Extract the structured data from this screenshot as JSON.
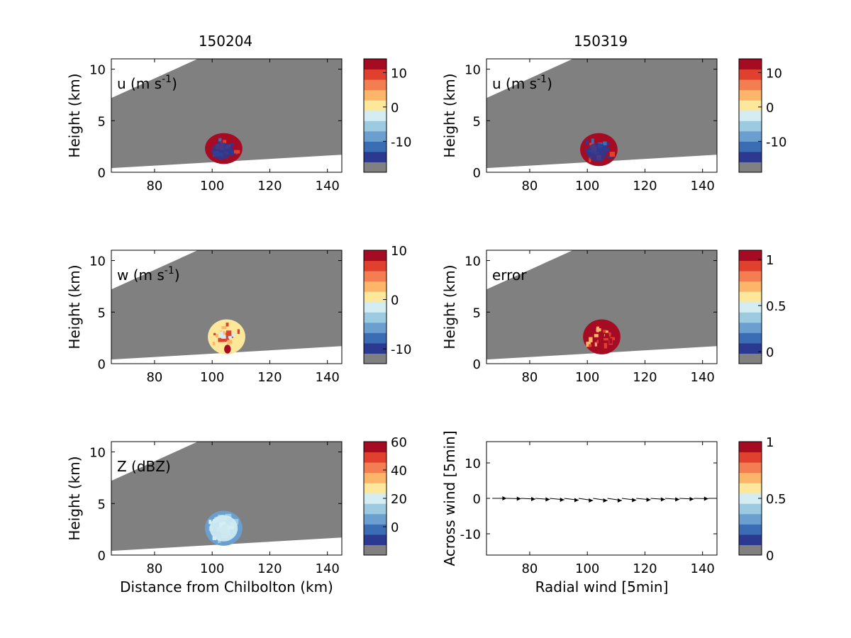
{
  "figure": {
    "column_titles": [
      "150204",
      "150319"
    ]
  },
  "colors": {
    "background_gray": "#808080",
    "palette": [
      "#808080",
      "#2b3990",
      "#3a6db4",
      "#6b9fcf",
      "#9ccae1",
      "#d4edf3",
      "#fde79a",
      "#fdb56a",
      "#f37e52",
      "#e0412f",
      "#a50c24"
    ]
  },
  "chart_data": [
    {
      "id": "p1",
      "type": "heatmap",
      "column": 0,
      "row": 0,
      "label": "u (m s",
      "label_sup": "-1",
      "label_suffix": ")",
      "ylabel": "Height (km)",
      "xlabel": "",
      "xlim": [
        65,
        145
      ],
      "ylim": [
        0,
        11
      ],
      "xticks": [
        "80",
        "100",
        "120",
        "140"
      ],
      "yticks": [
        "0",
        "5",
        "10"
      ],
      "colorbar": {
        "range": [
          -19,
          14
        ],
        "ticks": [
          "10",
          "0",
          "-10"
        ],
        "tick_values": [
          10,
          0,
          -10
        ]
      },
      "echo": {
        "center": [
          104,
          2.3
        ],
        "width": 13,
        "height": 3.0,
        "style": "u"
      }
    },
    {
      "id": "p2",
      "type": "heatmap",
      "column": 1,
      "row": 0,
      "label": "u (m s",
      "label_sup": "-1",
      "label_suffix": ")",
      "ylabel": "Height (km)",
      "xlabel": "",
      "xlim": [
        65,
        145
      ],
      "ylim": [
        0,
        11
      ],
      "xticks": [
        "80",
        "100",
        "120",
        "140"
      ],
      "yticks": [
        "0",
        "5",
        "10"
      ],
      "colorbar": {
        "range": [
          -19,
          14
        ],
        "ticks": [
          "10",
          "0",
          "-10"
        ],
        "tick_values": [
          10,
          0,
          -10
        ]
      },
      "echo": {
        "center": [
          104,
          2.2
        ],
        "width": 13,
        "height": 3.2,
        "style": "u"
      }
    },
    {
      "id": "p3",
      "type": "heatmap",
      "column": 0,
      "row": 1,
      "label": "w (m s",
      "label_sup": "-1",
      "label_suffix": ")",
      "ylabel": "Height (km)",
      "xlabel": "",
      "xlim": [
        65,
        145
      ],
      "ylim": [
        0,
        11
      ],
      "xticks": [
        "80",
        "100",
        "120",
        "140"
      ],
      "yticks": [
        "0",
        "5",
        "10"
      ],
      "colorbar": {
        "range": [
          -13,
          10
        ],
        "ticks": [
          "10",
          "0",
          "-10"
        ],
        "tick_values": [
          10,
          0,
          -10
        ]
      },
      "echo": {
        "center": [
          105,
          2.6
        ],
        "width": 13,
        "height": 3.4,
        "style": "w"
      }
    },
    {
      "id": "p4",
      "type": "heatmap",
      "column": 1,
      "row": 1,
      "label": "error",
      "label_sup": "",
      "label_suffix": "",
      "ylabel": "Height (km)",
      "xlabel": "",
      "xlim": [
        65,
        145
      ],
      "ylim": [
        0,
        11
      ],
      "xticks": [
        "80",
        "100",
        "120",
        "140"
      ],
      "yticks": [
        "0",
        "5",
        "10"
      ],
      "colorbar": {
        "range": [
          -0.13,
          1.1
        ],
        "ticks": [
          "1",
          "0.5",
          "0"
        ],
        "tick_values": [
          1,
          0.5,
          0
        ]
      },
      "echo": {
        "center": [
          105,
          2.6
        ],
        "width": 13,
        "height": 3.4,
        "style": "error"
      }
    },
    {
      "id": "p5",
      "type": "heatmap",
      "column": 0,
      "row": 2,
      "label": "Z (dBZ)",
      "label_sup": "",
      "label_suffix": "",
      "ylabel": "Height (km)",
      "xlabel": "Distance from Chilbolton (km)",
      "xlim": [
        65,
        145
      ],
      "ylim": [
        0,
        11
      ],
      "xticks": [
        "80",
        "100",
        "120",
        "140"
      ],
      "yticks": [
        "0",
        "5",
        "10"
      ],
      "colorbar": {
        "range": [
          -20,
          60
        ],
        "ticks": [
          "60",
          "40",
          "20",
          "0"
        ],
        "tick_values": [
          60,
          40,
          20,
          0
        ]
      },
      "echo": {
        "center": [
          104,
          2.6
        ],
        "width": 13,
        "height": 3.4,
        "style": "Z"
      }
    },
    {
      "id": "p6",
      "type": "scatter",
      "column": 1,
      "row": 2,
      "label": "",
      "label_sup": "",
      "label_suffix": "",
      "ylabel": "Across wind [5min]",
      "xlabel": "Radial wind [5min]",
      "xlim": [
        65,
        145
      ],
      "ylim": [
        -16,
        16
      ],
      "xticks": [
        "80",
        "100",
        "120",
        "140"
      ],
      "yticks": [
        "-10",
        "0",
        "10"
      ],
      "colorbar": {
        "range": [
          0,
          1
        ],
        "ticks": [
          "1",
          "0.5",
          "0"
        ],
        "tick_values": [
          1,
          0.5,
          0
        ]
      },
      "vectors": {
        "x": [
          70,
          75,
          80,
          85,
          90,
          95,
          100,
          105,
          110,
          115,
          120,
          125,
          130,
          135,
          140,
          145
        ],
        "y": [
          0,
          0,
          0,
          0,
          0,
          0,
          0,
          0,
          0,
          0,
          0,
          0,
          0,
          0,
          0,
          0
        ],
        "dy": [
          0,
          -0.1,
          -0.2,
          -0.3,
          -0.4,
          -0.5,
          -0.6,
          -0.6,
          -0.6,
          -0.5,
          -0.4,
          -0.3,
          -0.3,
          -0.2,
          -0.1,
          0
        ]
      }
    }
  ]
}
